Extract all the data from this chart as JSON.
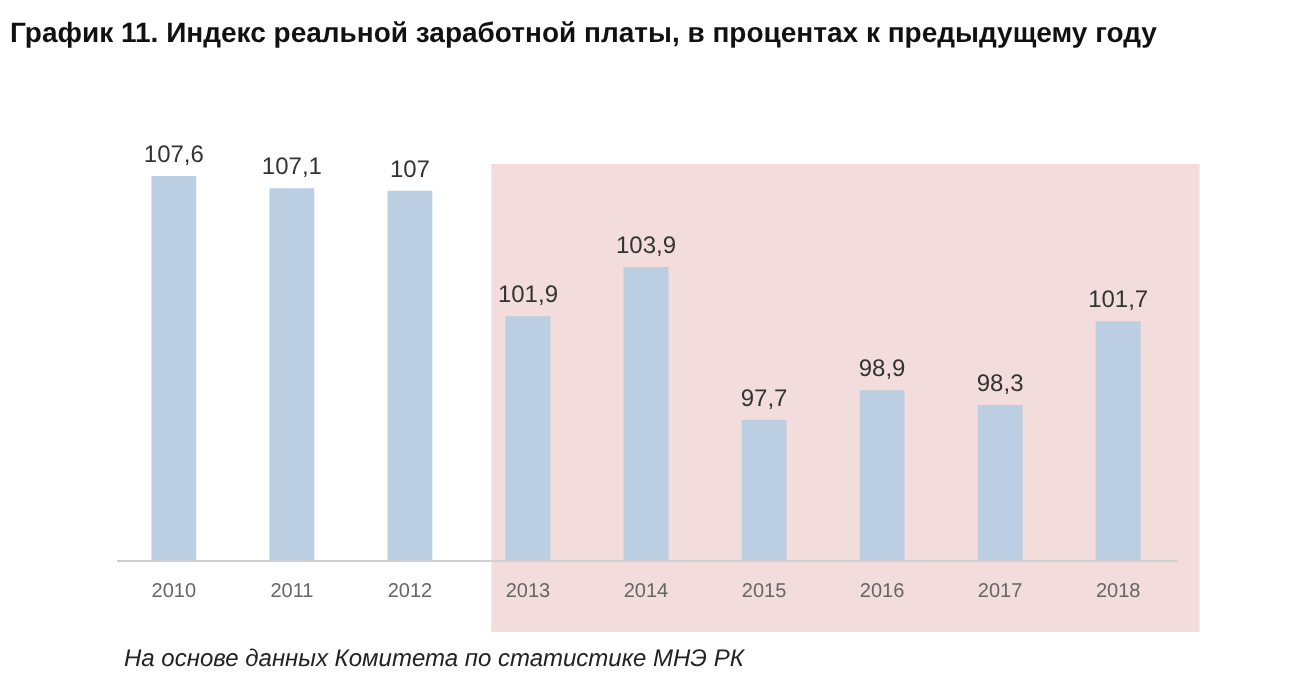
{
  "chart_data": {
    "type": "bar",
    "title": "График 11. Индекс реальной заработной платы, в процентах к предыдущему году",
    "categories": [
      "2010",
      "2011",
      "2012",
      "2013",
      "2014",
      "2015",
      "2016",
      "2017",
      "2018"
    ],
    "values": [
      107.6,
      107.1,
      107,
      101.9,
      103.9,
      97.7,
      98.9,
      98.3,
      101.7
    ],
    "value_labels": [
      "107,6",
      "107,1",
      "107",
      "101,9",
      "103,9",
      "97,7",
      "98,9",
      "98,3",
      "101,7"
    ],
    "color": "#bccee2",
    "ylim": [
      92,
      107.6
    ],
    "tick_labels": "x",
    "grid": false,
    "bands": [
      {
        "axis": "x",
        "from": "2013",
        "to": "2018",
        "color": "#f2dcdc"
      }
    ],
    "annotations": [
      "На основе данных Комитета по статистике МНЭ РК"
    ]
  }
}
